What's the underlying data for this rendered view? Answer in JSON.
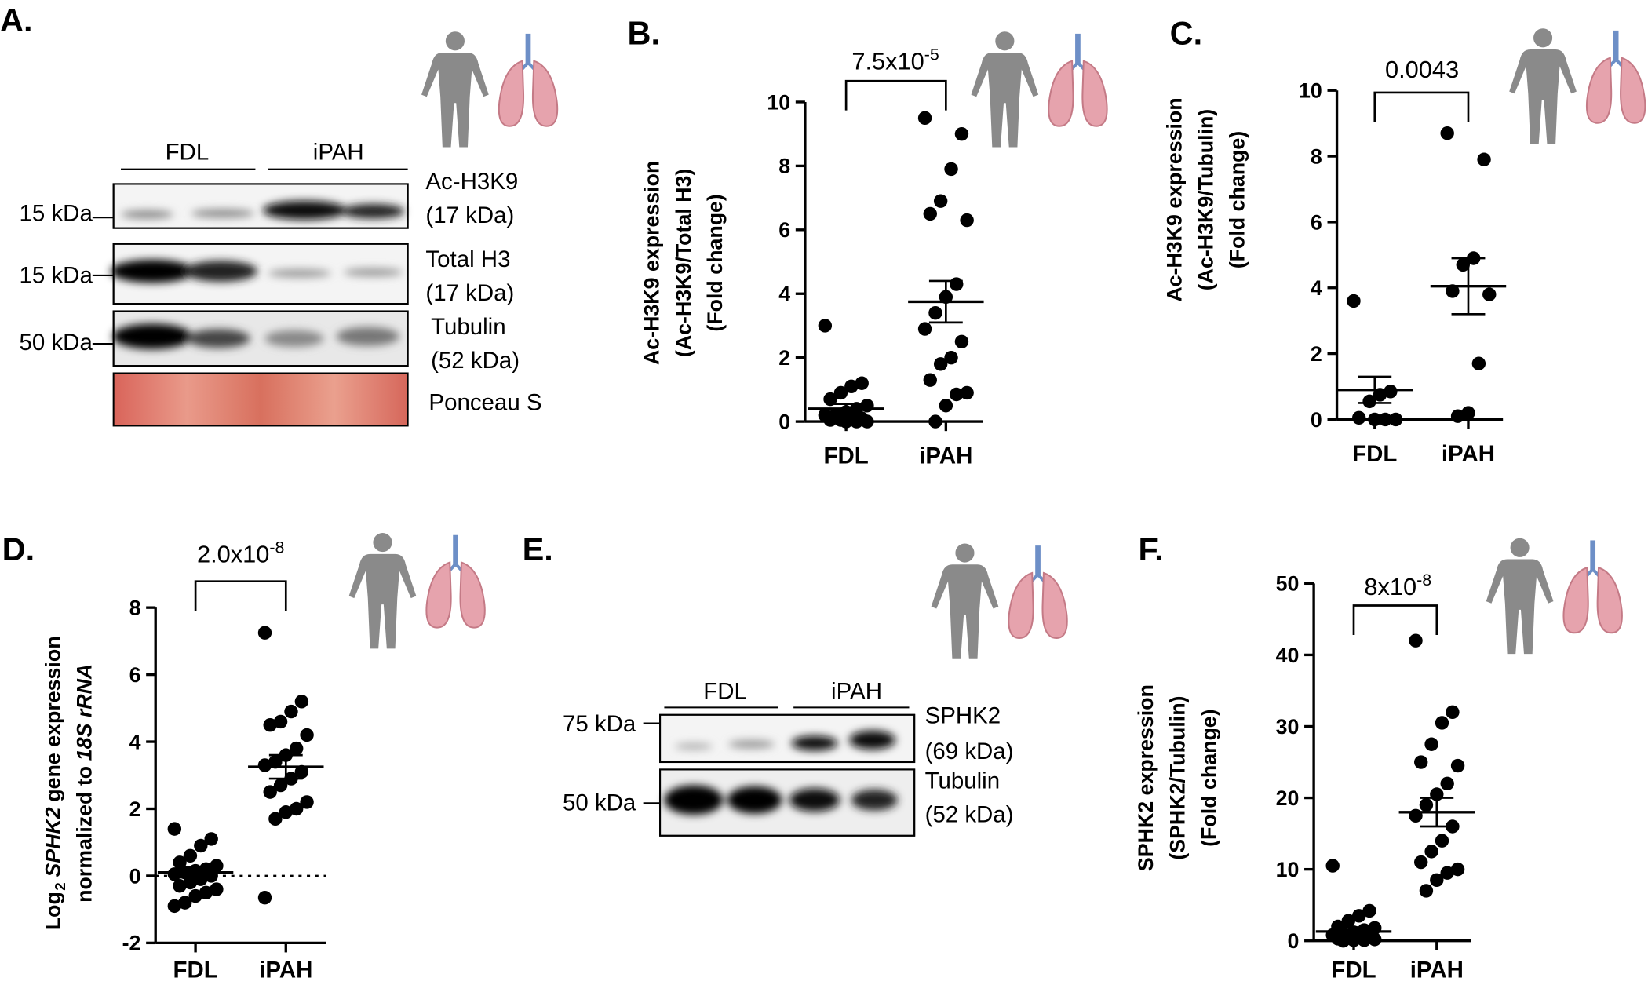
{
  "chart_data": [
    {
      "type": "dot",
      "panel": "B.",
      "categories": [
        "FDL",
        "iPAH"
      ],
      "color": "#000000",
      "ylabel": [
        "Ac-H3K9 expression",
        "(Ac-H3K9/Total H3)",
        "(Fold change)"
      ],
      "annotation": {
        "text": "7.5x10",
        "superscript": "-5"
      },
      "ylim": [
        0,
        10
      ],
      "yticks": [
        0,
        2,
        4,
        6,
        8,
        10
      ],
      "zero_line": false,
      "groups": [
        {
          "values": [
            3.0,
            1.2,
            1.1,
            0.9,
            0.7,
            0.5,
            0.4,
            0.3,
            0.2,
            0.2,
            0.1,
            0.1,
            0.05,
            0.05,
            0.0,
            0.0,
            0.0
          ],
          "mean": 0.4,
          "sem": 0.15
        },
        {
          "values": [
            9.5,
            9.0,
            7.9,
            6.9,
            6.5,
            6.3,
            4.3,
            3.9,
            3.4,
            2.9,
            2.5,
            2.0,
            1.8,
            1.3,
            0.9,
            0.85,
            0.5,
            0.0
          ],
          "mean": 3.75,
          "sem": 0.65
        }
      ]
    },
    {
      "type": "dot",
      "panel": "C.",
      "categories": [
        "FDL",
        "iPAH"
      ],
      "color": "#000000",
      "ylabel": [
        "Ac-H3K9 expression",
        "(Ac-H3K9/Tubulin)",
        "(Fold change)"
      ],
      "annotation": {
        "text": "0.0043"
      },
      "ylim": [
        0,
        10
      ],
      "yticks": [
        0,
        2,
        4,
        6,
        8,
        10
      ],
      "zero_line": false,
      "groups": [
        {
          "values": [
            3.6,
            0.85,
            0.75,
            0.55,
            0.05,
            0.0,
            0.0,
            0.0
          ],
          "mean": 0.9,
          "sem": 0.4
        },
        {
          "values": [
            8.7,
            7.9,
            4.9,
            4.7,
            3.9,
            3.8,
            1.7,
            0.2,
            0.1
          ],
          "mean": 4.05,
          "sem": 0.85
        }
      ]
    },
    {
      "type": "dot",
      "panel": "D.",
      "categories": [
        "FDL",
        "iPAH"
      ],
      "color": "#000000",
      "ylabel": [
        [
          {
            "text": "Log"
          },
          {
            "text": "2",
            "style": "sub"
          },
          {
            "text": "SPHK2",
            "style": "italic"
          },
          {
            "text": "gene expression"
          }
        ],
        [
          {
            "text": "normalized to"
          },
          {
            "text": "18S rRNA",
            "style": "italic"
          }
        ]
      ],
      "annotation": {
        "text": "2.0x10",
        "superscript": "-8"
      },
      "ylim": [
        -2,
        8
      ],
      "yticks": [
        -2,
        0,
        2,
        4,
        6,
        8
      ],
      "zero_line": true,
      "groups": [
        {
          "values": [
            1.4,
            1.1,
            0.9,
            0.6,
            0.4,
            0.3,
            0.2,
            0.15,
            0.1,
            0.05,
            0.0,
            -0.1,
            -0.2,
            -0.3,
            -0.4,
            -0.5,
            -0.6,
            -0.8,
            -0.9
          ],
          "mean": 0.1,
          "sem": 0.15
        },
        {
          "values": [
            7.25,
            5.2,
            4.9,
            4.6,
            4.5,
            4.2,
            3.8,
            3.6,
            3.4,
            3.3,
            3.1,
            2.9,
            2.7,
            2.5,
            2.2,
            2.0,
            1.9,
            1.7,
            -0.65
          ],
          "mean": 3.25,
          "sem": 0.35
        }
      ]
    },
    {
      "type": "dot",
      "panel": "F.",
      "categories": [
        "FDL",
        "iPAH"
      ],
      "color": "#000000",
      "ylabel": [
        "SPHK2 expression",
        "(SPHK2/Tubulin)",
        "(Fold change)"
      ],
      "annotation": {
        "text": "8x10",
        "superscript": "-8"
      },
      "ylim": [
        0,
        50
      ],
      "yticks": [
        0,
        10,
        20,
        30,
        40,
        50
      ],
      "zero_line": false,
      "groups": [
        {
          "values": [
            10.5,
            4.2,
            3.5,
            2.8,
            2.0,
            1.8,
            1.5,
            1.2,
            1.0,
            0.8,
            0.6,
            0.5,
            0.4,
            0.3,
            0.2,
            0.1,
            0.1,
            0.0
          ],
          "mean": 1.3,
          "sem": 0.6
        },
        {
          "values": [
            42,
            32,
            30.5,
            27.5,
            25,
            24.5,
            22,
            20.5,
            19,
            17.5,
            16,
            14,
            12.5,
            11,
            10,
            9.5,
            8.5,
            7
          ],
          "mean": 18,
          "sem": 2
        }
      ]
    }
  ],
  "blots": [
    {
      "panel": "A.",
      "groups": [
        "FDL",
        "iPAH"
      ],
      "ladders": [
        "15 kDa",
        "15 kDa",
        "50 kDa"
      ],
      "bands": [
        [
          "Ac-H3K9",
          "(17 kDa)"
        ],
        [
          "Total H3",
          "(17 kDa)"
        ],
        [
          "Tubulin",
          "(52 kDa)"
        ],
        [
          "Ponceau S"
        ]
      ]
    },
    {
      "panel": "E.",
      "groups": [
        "FDL",
        "iPAH"
      ],
      "ladders": [
        "75 kDa",
        "50 kDa"
      ],
      "bands": [
        [
          "SPHK2",
          "(69 kDa)"
        ],
        [
          "Tubulin",
          "(52 kDa)"
        ]
      ]
    }
  ]
}
